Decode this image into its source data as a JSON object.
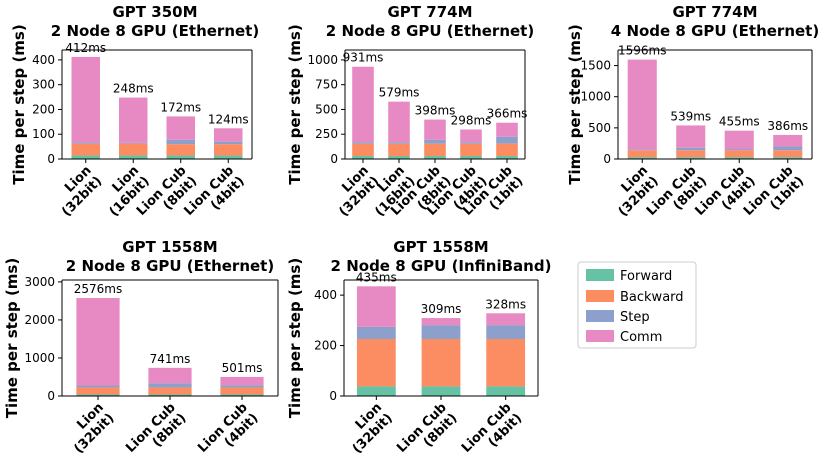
{
  "colors": {
    "forward": "#66c2a5",
    "backward": "#fc8d62",
    "step": "#8da0cb",
    "comm": "#e78ac3"
  },
  "legend": {
    "entries": [
      "Forward",
      "Backward",
      "Step",
      "Comm"
    ]
  },
  "chart_data": [
    {
      "type": "bar",
      "stacked": true,
      "title": [
        "GPT 350M",
        "2 Node 8 GPU (Ethernet)"
      ],
      "ylabel": "Time per step (ms)",
      "ylim": [
        0,
        440
      ],
      "yticks": [
        0,
        100,
        200,
        300,
        400
      ],
      "categories": [
        [
          "Lion",
          "(32bit)"
        ],
        [
          "Lion",
          "(16bit)"
        ],
        [
          "Lion Cub",
          "(8bit)"
        ],
        [
          "Lion Cub",
          "(4bit)"
        ]
      ],
      "series": [
        {
          "name": "Forward",
          "values": [
            14,
            14,
            14,
            14
          ]
        },
        {
          "name": "Backward",
          "values": [
            48,
            48,
            46,
            46
          ]
        },
        {
          "name": "Step",
          "values": [
            5,
            3,
            18,
            10
          ]
        },
        {
          "name": "Comm",
          "values": [
            345,
            183,
            94,
            54
          ]
        }
      ],
      "totals": [
        "412ms",
        "248ms",
        "172ms",
        "124ms"
      ]
    },
    {
      "type": "bar",
      "stacked": true,
      "title": [
        "GPT 774M",
        "2 Node 8 GPU (Ethernet)"
      ],
      "ylabel": "Time per step (ms)",
      "ylim": [
        0,
        1100
      ],
      "yticks": [
        0,
        250,
        500,
        750,
        1000
      ],
      "categories": [
        [
          "Lion",
          "(32bit)"
        ],
        [
          "Lion",
          "(16bit)"
        ],
        [
          "Lion Cub",
          "(8bit)"
        ],
        [
          "Lion Cub",
          "(4bit)"
        ],
        [
          "Lion Cub",
          "(1bit)"
        ]
      ],
      "series": [
        {
          "name": "Forward",
          "values": [
            30,
            30,
            30,
            30,
            30
          ]
        },
        {
          "name": "Backward",
          "values": [
            125,
            125,
            125,
            125,
            125
          ]
        },
        {
          "name": "Step",
          "values": [
            15,
            15,
            40,
            15,
            70
          ]
        },
        {
          "name": "Comm",
          "values": [
            761,
            409,
            203,
            128,
            141
          ]
        }
      ],
      "totals": [
        "931ms",
        "579ms",
        "398ms",
        "298ms",
        "366ms"
      ]
    },
    {
      "type": "bar",
      "stacked": true,
      "title": [
        "GPT 774M",
        "4 Node 8 GPU (Ethernet)"
      ],
      "ylabel": "Time per step (ms)",
      "ylim": [
        0,
        1750
      ],
      "yticks": [
        0,
        500,
        1000,
        1500
      ],
      "categories": [
        [
          "Lion",
          "(32bit)"
        ],
        [
          "Lion Cub",
          "(8bit)"
        ],
        [
          "Lion Cub",
          "(4bit)"
        ],
        [
          "Lion Cub",
          "(1bit)"
        ]
      ],
      "series": [
        {
          "name": "Forward",
          "values": [
            30,
            30,
            30,
            30
          ]
        },
        {
          "name": "Backward",
          "values": [
            110,
            110,
            110,
            110
          ]
        },
        {
          "name": "Step",
          "values": [
            15,
            40,
            20,
            60
          ]
        },
        {
          "name": "Comm",
          "values": [
            1441,
            359,
            295,
            186
          ]
        }
      ],
      "totals": [
        "1596ms",
        "539ms",
        "455ms",
        "386ms"
      ]
    },
    {
      "type": "bar",
      "stacked": true,
      "title": [
        "GPT 1558M",
        "2 Node 8 GPU (Ethernet)"
      ],
      "ylabel": "Time per step (ms)",
      "ylim": [
        0,
        3050
      ],
      "yticks": [
        0,
        1000,
        2000,
        3000
      ],
      "categories": [
        [
          "Lion",
          "(32bit)"
        ],
        [
          "Lion Cub",
          "(8bit)"
        ],
        [
          "Lion Cub",
          "(4bit)"
        ]
      ],
      "series": [
        {
          "name": "Forward",
          "values": [
            40,
            40,
            40
          ]
        },
        {
          "name": "Backward",
          "values": [
            185,
            185,
            185
          ]
        },
        {
          "name": "Step",
          "values": [
            50,
            110,
            60
          ]
        },
        {
          "name": "Comm",
          "values": [
            2301,
            406,
            216
          ]
        }
      ],
      "totals": [
        "2576ms",
        "741ms",
        "501ms"
      ]
    },
    {
      "type": "bar",
      "stacked": true,
      "title": [
        "GPT 1558M",
        "2 Node 8 GPU (InfiniBand)"
      ],
      "ylabel": "Time per step (ms)",
      "ylim": [
        0,
        460
      ],
      "yticks": [
        0,
        200,
        400
      ],
      "categories": [
        [
          "Lion",
          "(32bit)"
        ],
        [
          "Lion Cub",
          "(8bit)"
        ],
        [
          "Lion Cub",
          "(4bit)"
        ]
      ],
      "series": [
        {
          "name": "Forward",
          "values": [
            38,
            38,
            38
          ]
        },
        {
          "name": "Backward",
          "values": [
            188,
            188,
            188
          ]
        },
        {
          "name": "Step",
          "values": [
            48,
            55,
            55
          ]
        },
        {
          "name": "Comm",
          "values": [
            161,
            28,
            47
          ]
        }
      ],
      "totals": [
        "435ms",
        "309ms",
        "328ms"
      ]
    }
  ]
}
